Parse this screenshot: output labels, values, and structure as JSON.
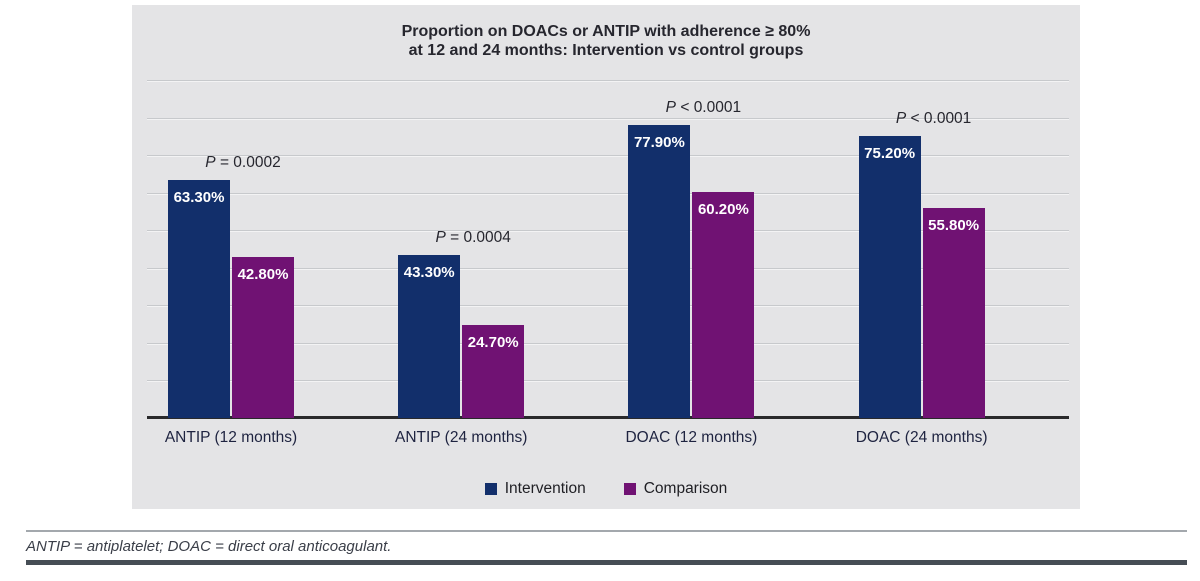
{
  "figure": {
    "title_line1": "Proportion on DOACs or ANTIP with adherence ≥ 80%",
    "title_line2": "at 12 and 24 months: Intervention vs control groups",
    "footnote": "ANTIP = antiplatelet; DOAC = direct oral anticoagulant.",
    "colors": {
      "panel_background": "#e4e4e6",
      "intervention": "#122f6b",
      "comparison": "#701273",
      "gridline": "#c7c9cc",
      "axis": "#29292b",
      "footnote_text": "#3a3e48"
    }
  },
  "chart_data": {
    "type": "bar",
    "title": "Proportion on DOACs or ANTIP with adherence ≥ 80% at 12 and 24 months: Intervention vs control groups",
    "categories": [
      "ANTIP (12 months)",
      "ANTIP (24 months)",
      "DOAC (12 months)",
      "DOAC (24 months)"
    ],
    "series": [
      {
        "name": "Intervention",
        "color": "#122f6b",
        "values": [
          63.3,
          43.3,
          77.9,
          75.2
        ],
        "labels": [
          "63.30%",
          "43.30%",
          "77.90%",
          "75.20%"
        ]
      },
      {
        "name": "Comparison",
        "color": "#701273",
        "values": [
          42.8,
          24.7,
          60.2,
          55.8
        ],
        "labels": [
          "42.80%",
          "24.70%",
          "60.20%",
          "55.80%"
        ]
      }
    ],
    "p_values": [
      "P = 0.0002",
      "P = 0.0004",
      "P < 0.0001",
      "P < 0.0001"
    ],
    "xlabel": "",
    "ylabel": "",
    "ylim": [
      0,
      90
    ],
    "grid_step": 10,
    "grid": "on",
    "legend_position": "bottom-center",
    "value_labels_position": "inside-top",
    "y_axis_labels_visible": false
  }
}
